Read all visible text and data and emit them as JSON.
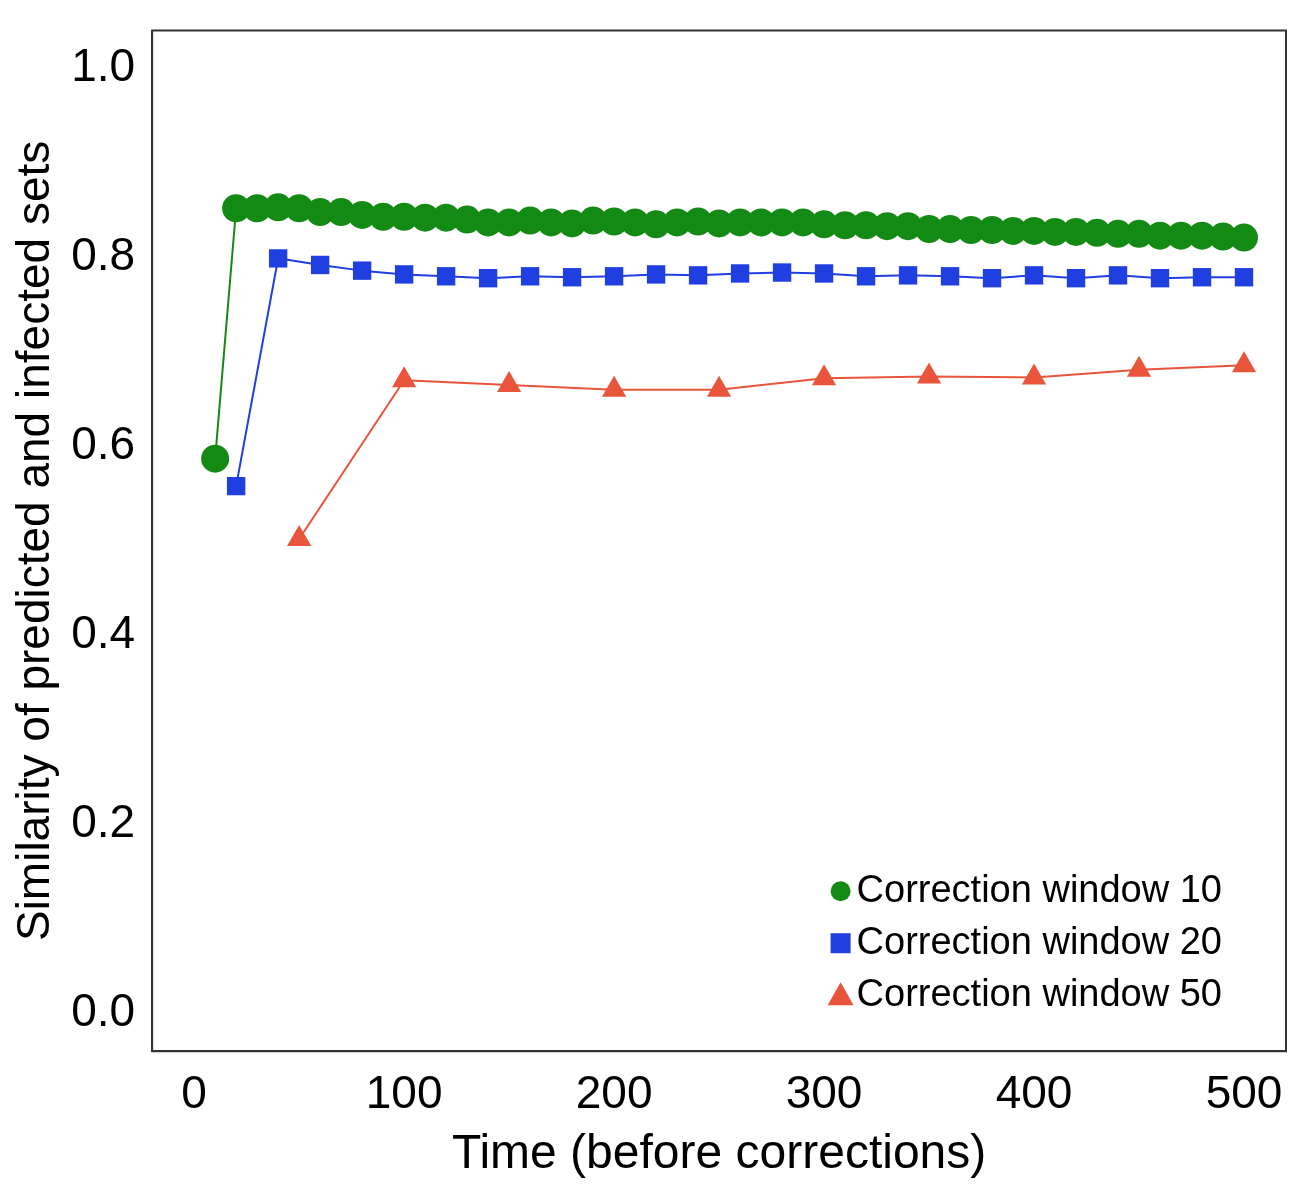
{
  "chart_data": {
    "type": "line",
    "xlabel": "Time (before corrections)",
    "ylabel": "Similarity of predicted and infected sets",
    "xlim": [
      -20,
      520
    ],
    "ylim": [
      -0.04,
      1.04
    ],
    "xticks": [
      0,
      100,
      200,
      300,
      400,
      500
    ],
    "yticks": [
      {
        "value": 0,
        "label": "0.0"
      },
      {
        "value": 0.2,
        "label": "0.2"
      },
      {
        "value": 0.4,
        "label": "0.4"
      },
      {
        "value": 0.6,
        "label": "0.6"
      },
      {
        "value": 0.8,
        "label": "0.8"
      },
      {
        "value": 1,
        "label": "1.0"
      }
    ],
    "grid": false,
    "legend": "bottom right",
    "line_style": "solid",
    "series": [
      {
        "name": "Correction window 10",
        "color": "#138a13",
        "marker": "circle",
        "x": [
          10,
          20,
          30,
          40,
          50,
          60,
          70,
          80,
          90,
          100,
          110,
          120,
          130,
          140,
          150,
          160,
          170,
          180,
          190,
          200,
          210,
          220,
          230,
          240,
          250,
          260,
          270,
          280,
          290,
          300,
          310,
          320,
          330,
          340,
          350,
          360,
          370,
          380,
          390,
          400,
          410,
          420,
          430,
          440,
          450,
          460,
          470,
          480,
          490,
          500
        ],
        "values": [
          0.587,
          0.852,
          0.852,
          0.853,
          0.852,
          0.848,
          0.848,
          0.845,
          0.843,
          0.843,
          0.842,
          0.842,
          0.84,
          0.837,
          0.837,
          0.839,
          0.837,
          0.836,
          0.839,
          0.838,
          0.837,
          0.835,
          0.837,
          0.838,
          0.836,
          0.837,
          0.837,
          0.837,
          0.837,
          0.835,
          0.834,
          0.834,
          0.833,
          0.833,
          0.83,
          0.83,
          0.829,
          0.829,
          0.828,
          0.828,
          0.827,
          0.827,
          0.826,
          0.825,
          0.825,
          0.823,
          0.823,
          0.823,
          0.822,
          0.821
        ]
      },
      {
        "name": "Correction window 20",
        "color": "#1f3fe0",
        "marker": "square",
        "x": [
          20,
          40,
          60,
          80,
          100,
          120,
          140,
          160,
          180,
          200,
          220,
          240,
          260,
          280,
          300,
          320,
          340,
          360,
          380,
          400,
          420,
          440,
          460,
          480,
          500
        ],
        "values": [
          0.558,
          0.799,
          0.792,
          0.786,
          0.782,
          0.78,
          0.778,
          0.78,
          0.779,
          0.78,
          0.782,
          0.781,
          0.783,
          0.784,
          0.783,
          0.78,
          0.781,
          0.78,
          0.778,
          0.781,
          0.778,
          0.781,
          0.778,
          0.779,
          0.779
        ]
      },
      {
        "name": "Correction window 50",
        "color": "#e8553b",
        "marker": "triangle",
        "x": [
          50,
          100,
          150,
          200,
          250,
          300,
          350,
          400,
          450,
          500
        ],
        "values": [
          0.502,
          0.67,
          0.665,
          0.66,
          0.66,
          0.672,
          0.674,
          0.673,
          0.681,
          0.686
        ]
      }
    ]
  }
}
